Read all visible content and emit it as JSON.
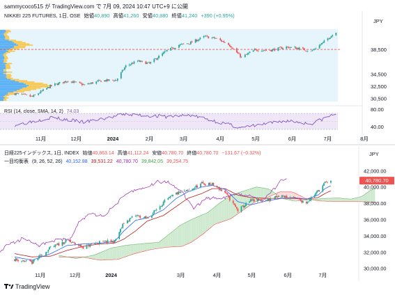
{
  "header": {
    "text": "sammycoco515 が TradingView.com で 7月 09, 2024 10:47 UTC+9 に公開"
  },
  "footer": {
    "brand": "TradingView",
    "logo_icon": "tradingview-logo-icon"
  },
  "colors": {
    "up": "#26a69a",
    "down": "#ef5350",
    "rsi": "#7e57c2",
    "ref": "#ef5350",
    "tenkan": "#2962ff",
    "kijun": "#b71c1c",
    "chikou": "#9c27b0",
    "cloud_up": "#c8e6c9",
    "cloud_dn": "#f8d7d7",
    "vp_up": "#2196f3",
    "vp_dn": "#ffb300"
  },
  "top_panel": {
    "legend": {
      "title": "NIKKEI 225 FUTURES, 1日, OSE",
      "open_label": "始値",
      "open": "40,890",
      "high_label": "高値",
      "high": "41,260",
      "low_label": "安値",
      "low": "40,880",
      "close_label": "終値",
      "close": "41,240",
      "change": "+390 (+0.95%)"
    },
    "currency": "JPY",
    "price_axis": [
      "38,500",
      "34,500",
      "32,500",
      "30,500"
    ],
    "rsi_legend": {
      "label": "RSI (14, close, SMA, 14, 2)",
      "value": "74.03"
    },
    "rsi_axis": [
      "80.00",
      "40.00"
    ],
    "time_axis": [
      "11月",
      "12月",
      "2024",
      "2月",
      "3月",
      "4月",
      "5月",
      "6月",
      "7月",
      "8月"
    ]
  },
  "bottom_panel": {
    "legend": {
      "title": "日経225インデックス, 1日, INDEX",
      "open_label": "始値",
      "open": "40,863.14",
      "high_label": "高値",
      "high": "41,112.24",
      "low_label": "安値",
      "low": "40,780.70",
      "close_label": "終値",
      "close": "40,780.70",
      "change": "−131.67 (−0.32%)"
    },
    "ichimoku": {
      "label": "一目均衡表",
      "params": "(9, 26, 52, 26)",
      "tenkan": "40,152.88",
      "kijun": "39,531.22",
      "chikou": "40,780.70",
      "span_a": "39,842.05",
      "span_b": "39,254.75"
    },
    "currency": "JPY",
    "price_axis": [
      "42,000.00",
      "40,000.00",
      "38,000.00",
      "36,000.00",
      "34,000.00",
      "32,000.00",
      "30,000.00"
    ],
    "last_price": "40,780.70",
    "time_axis": [
      "11月",
      "12月",
      "2024",
      "3月",
      "4月",
      "5月",
      "6月",
      "7月"
    ]
  },
  "chart_data": [
    {
      "type": "line",
      "title": "NIKKEI 225 FUTURES, 1日, OSE",
      "chart_style": "candlestick",
      "x": [
        "2023-10-10",
        "2023-10-25",
        "2023-11-10",
        "2023-11-24",
        "2023-12-08",
        "2023-12-22",
        "2024-01-04",
        "2024-01-12",
        "2024-01-22",
        "2024-02-01",
        "2024-02-15",
        "2024-02-26",
        "2024-03-07",
        "2024-03-19",
        "2024-03-28",
        "2024-04-08",
        "2024-04-19",
        "2024-04-30",
        "2024-05-14",
        "2024-05-27",
        "2024-06-06",
        "2024-06-17",
        "2024-06-27",
        "2024-07-03",
        "2024-07-08"
      ],
      "series": [
        {
          "values": [
            31300,
            30800,
            32600,
            33400,
            32700,
            33400,
            33500,
            35800,
            36600,
            36200,
            38200,
            39200,
            39600,
            40600,
            40300,
            39400,
            37200,
            38400,
            38400,
            38900,
            38700,
            38200,
            39600,
            40600,
            41240
          ]
        }
      ],
      "ylim": [
        30000,
        42000
      ],
      "reference_line": 38500
    },
    {
      "type": "line",
      "title": "RSI (14, close, SMA, 14, 2)",
      "x": [
        "2023-10-10",
        "2023-11-10",
        "2023-12-08",
        "2024-01-12",
        "2024-02-15",
        "2024-03-07",
        "2024-04-19",
        "2024-05-27",
        "2024-06-17",
        "2024-07-08"
      ],
      "series": [
        {
          "name": "RSI",
          "values": [
            45,
            64,
            52,
            72,
            66,
            70,
            38,
            56,
            48,
            74.03
          ]
        }
      ],
      "ylim": [
        20,
        90
      ],
      "bands": [
        30,
        70
      ]
    },
    {
      "type": "line",
      "title": "日経225インデックス, 1日, INDEX",
      "chart_style": "candlestick with ichimoku cloud",
      "x": [
        "2023-10-10",
        "2023-10-25",
        "2023-11-10",
        "2023-11-24",
        "2023-12-08",
        "2023-12-22",
        "2024-01-04",
        "2024-01-12",
        "2024-01-22",
        "2024-02-01",
        "2024-02-15",
        "2024-02-26",
        "2024-03-07",
        "2024-03-19",
        "2024-03-28",
        "2024-04-08",
        "2024-04-19",
        "2024-04-30",
        "2024-05-14",
        "2024-05-27",
        "2024-06-06",
        "2024-06-17",
        "2024-06-27",
        "2024-07-03",
        "2024-07-08"
      ],
      "series": [
        {
          "name": "",
          "values": [
            31100,
            30700,
            32500,
            33400,
            32600,
            33200,
            33300,
            35600,
            36500,
            36100,
            38100,
            39200,
            39500,
            40400,
            40300,
            39300,
            37100,
            38300,
            38400,
            38900,
            38600,
            38100,
            39500,
            40500,
            40780.7
          ]
        },
        {
          "name": "",
          "values": [
            31400,
            31000,
            31800,
            32800,
            33000,
            33100,
            33300,
            34600,
            35900,
            36200,
            37200,
            38600,
            39400,
            40000,
            40200,
            39700,
            38200,
            37800,
            38300,
            38600,
            38700,
            38500,
            39000,
            39800,
            40152.88
          ]
        },
        {
          "name": "",
          "values": [
            31800,
            31400,
            31500,
            32200,
            32700,
            33000,
            33100,
            33600,
            34600,
            35800,
            36500,
            37600,
            38600,
            39200,
            39800,
            39800,
            39000,
            38700,
            38600,
            38600,
            38600,
            38500,
            38700,
            39200,
            39531.22
          ]
        }
      ],
      "ylim": [
        30000,
        42000
      ]
    }
  ]
}
